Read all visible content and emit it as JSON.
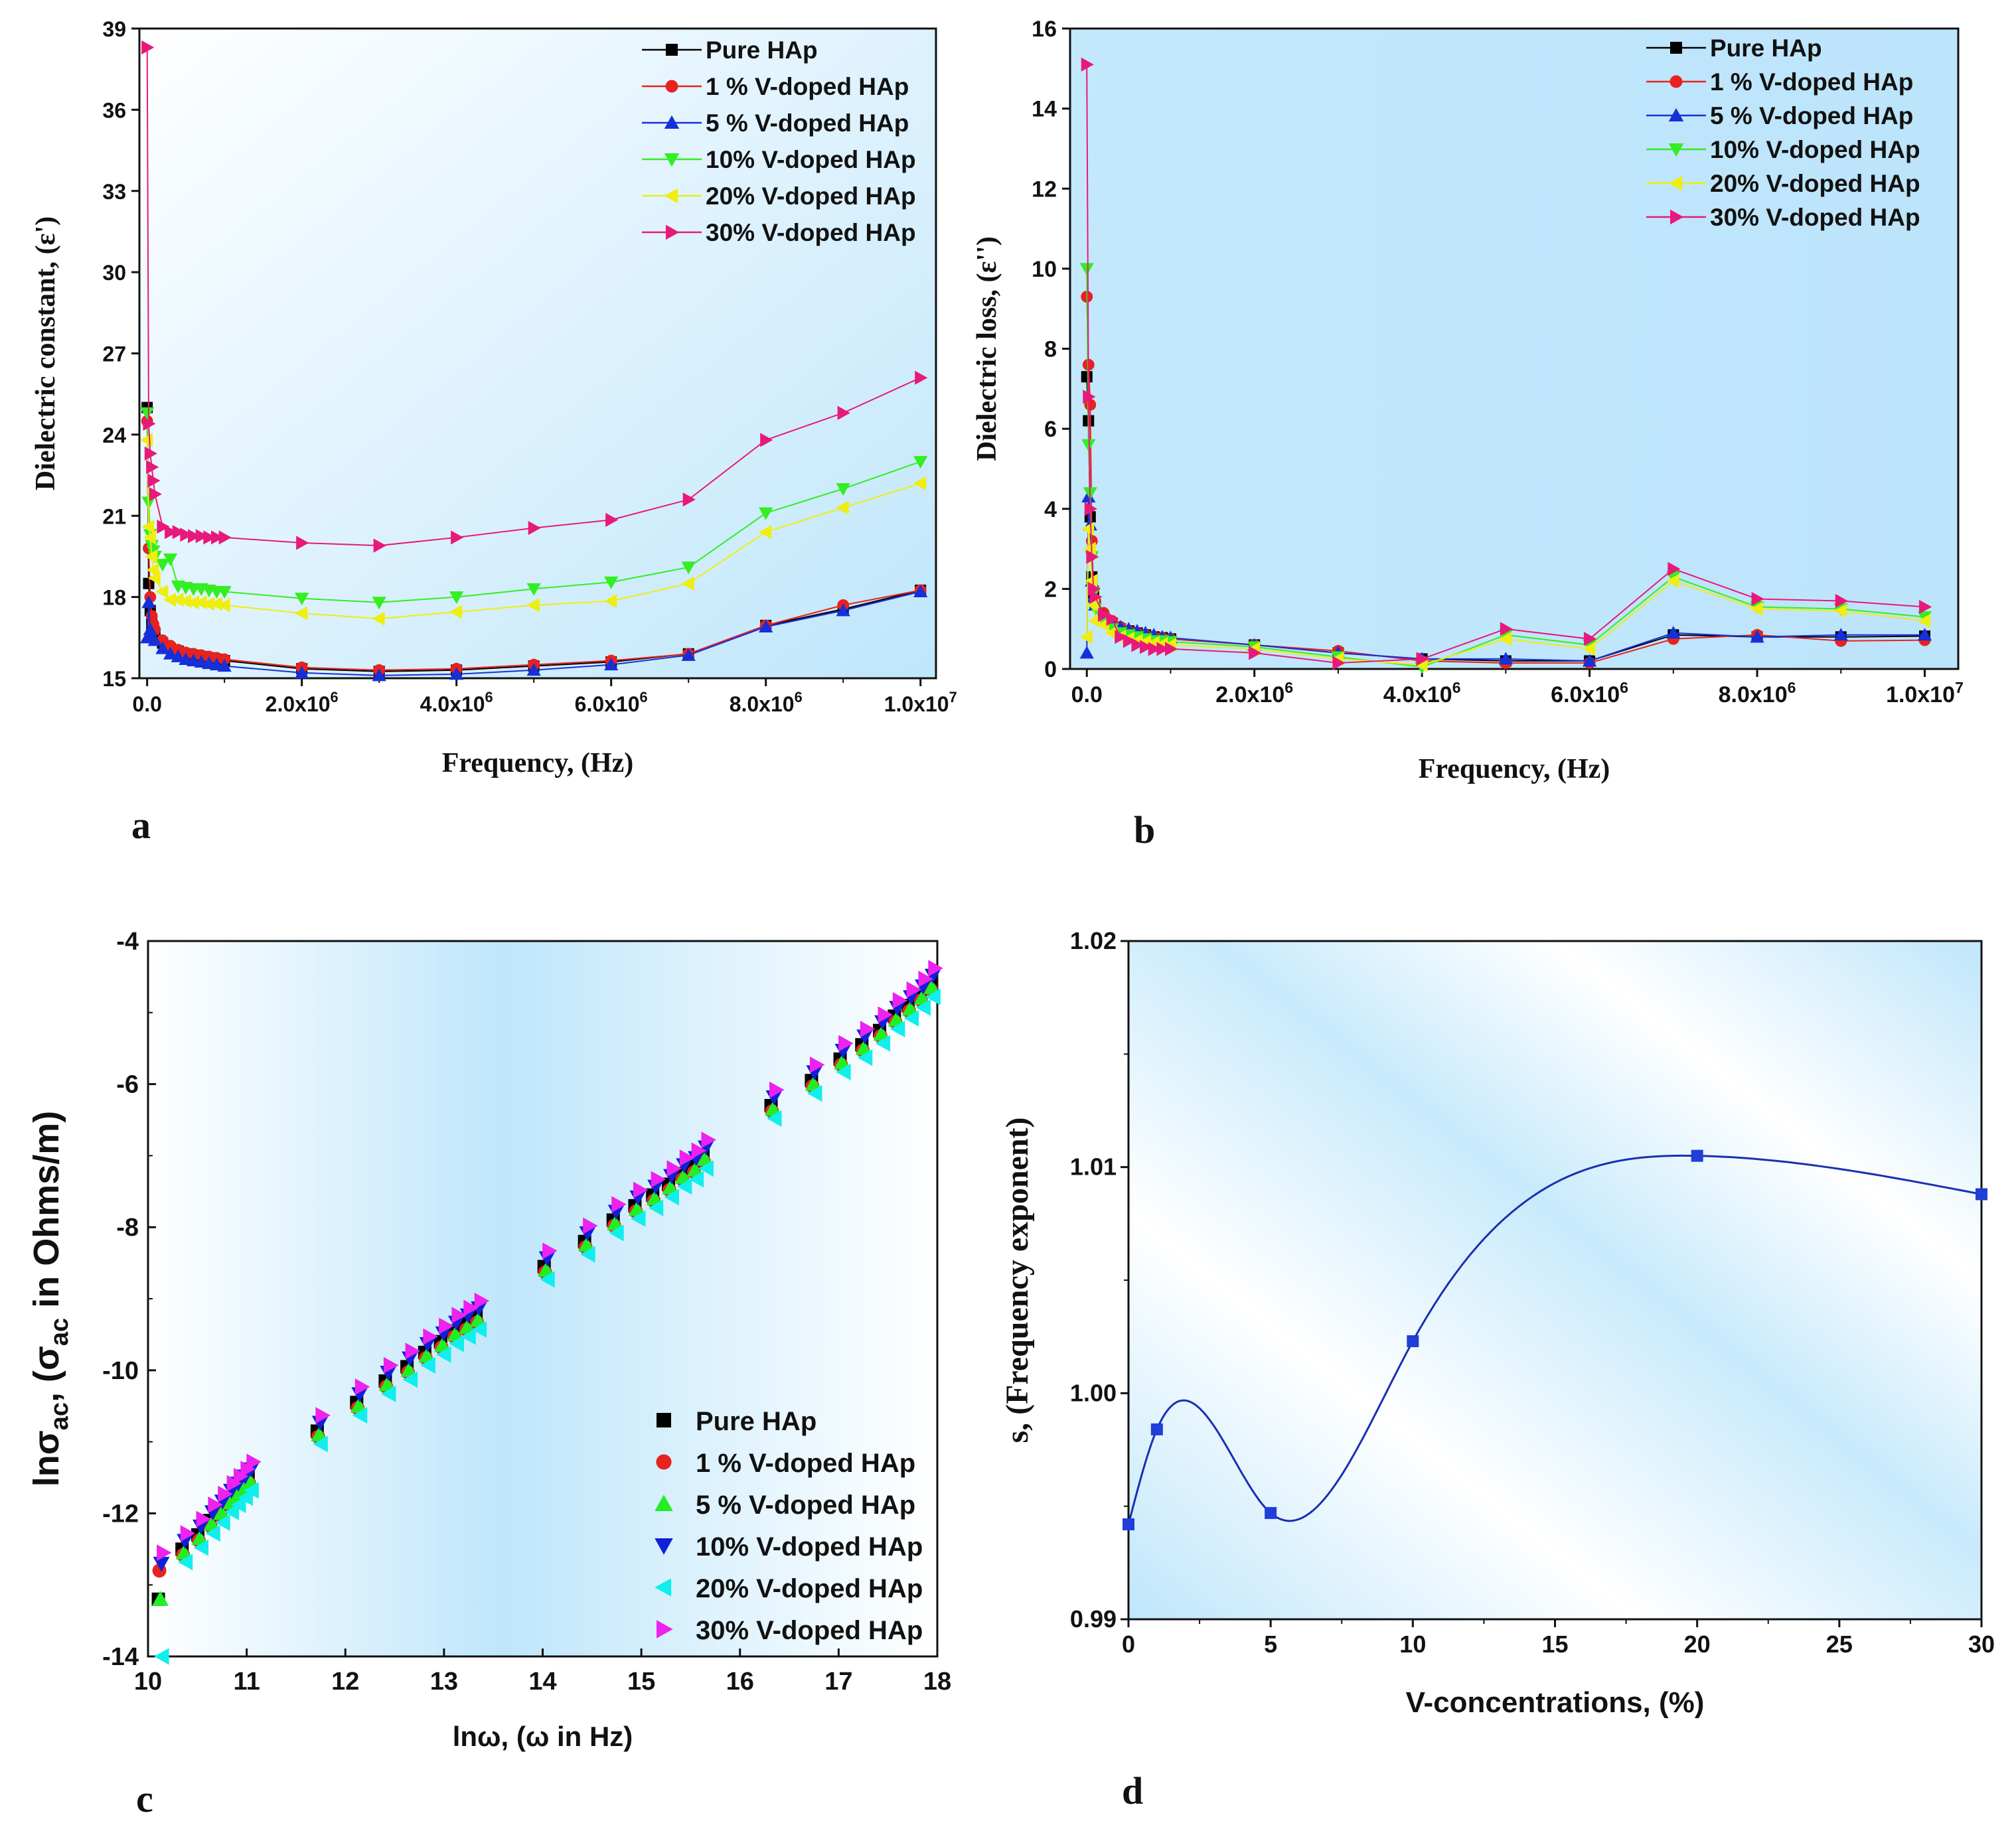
{
  "colors": {
    "pure": "#000000",
    "v1": "#e8221e",
    "v5": "#1530d8",
    "v10": "#33ee22",
    "v20": "#eeee10",
    "v30": "#e8197a",
    "c_v5": "#22ee22",
    "c_v10": "#1020d8",
    "c_v20": "#11eeee",
    "c_v30": "#ee22ee",
    "d_line": "#1a2fb0",
    "bg_light": "#bfe6fb"
  },
  "chart_data": [
    {
      "id": "a",
      "panel_label": "a",
      "type": "line",
      "xlabel": "Frequency, (Hz)",
      "ylabel": "Dielectric constant, (ε')",
      "xlim": [
        -100000,
        10200000
      ],
      "ylim": [
        15,
        39
      ],
      "xticks": [
        {
          "v": 0,
          "label": "0.0"
        },
        {
          "v": 2000000,
          "label": "2.0x10",
          "sup": "6"
        },
        {
          "v": 4000000,
          "label": "4.0x10",
          "sup": "6"
        },
        {
          "v": 6000000,
          "label": "6.0x10",
          "sup": "6"
        },
        {
          "v": 8000000,
          "label": "8.0x10",
          "sup": "6"
        },
        {
          "v": 10000000,
          "label": "1.0x10",
          "sup": "7"
        }
      ],
      "yticks": [
        "15",
        "18",
        "21",
        "24",
        "27",
        "30",
        "33",
        "36",
        "39"
      ],
      "legend": [
        "Pure HAp",
        "1  % V-doped HAp",
        "5  % V-doped HAp",
        "10% V-doped HAp",
        "20% V-doped HAp",
        "30% V-doped HAp"
      ],
      "x": [
        0,
        20000,
        40000,
        60000,
        80000,
        100000,
        200000,
        300000,
        400000,
        500000,
        600000,
        700000,
        800000,
        900000,
        1000000,
        2000000,
        3000000,
        4000000,
        5000000,
        6000000,
        7000000,
        8000000,
        9000000,
        10000000
      ],
      "series": [
        {
          "name": "Pure HAp",
          "marker": "square",
          "values": [
            25.0,
            18.5,
            17.5,
            17.0,
            16.8,
            16.6,
            16.3,
            16.1,
            16.0,
            15.9,
            15.85,
            15.8,
            15.75,
            15.7,
            15.65,
            15.35,
            15.25,
            15.3,
            15.45,
            15.6,
            15.9,
            16.95,
            17.55,
            18.25
          ]
        },
        {
          "name": "1  % V-doped HAp",
          "marker": "circle",
          "values": [
            24.5,
            19.8,
            18.0,
            17.3,
            17.0,
            16.8,
            16.4,
            16.2,
            16.05,
            15.95,
            15.9,
            15.85,
            15.8,
            15.75,
            15.7,
            15.4,
            15.3,
            15.35,
            15.5,
            15.65,
            15.9,
            16.95,
            17.7,
            18.25
          ]
        },
        {
          "name": "5  % V-doped HAp",
          "marker": "triangle-up",
          "values": [
            16.5,
            17.8,
            16.8,
            16.6,
            16.5,
            16.4,
            16.1,
            15.9,
            15.8,
            15.7,
            15.65,
            15.6,
            15.55,
            15.5,
            15.45,
            15.2,
            15.1,
            15.15,
            15.3,
            15.5,
            15.85,
            16.9,
            17.5,
            18.2
          ]
        },
        {
          "name": "10% V-doped HAp",
          "marker": "triangle-down",
          "values": [
            24.8,
            21.5,
            20.3,
            19.9,
            19.7,
            19.5,
            19.2,
            19.4,
            18.4,
            18.35,
            18.3,
            18.3,
            18.25,
            18.2,
            18.2,
            17.95,
            17.8,
            18.0,
            18.3,
            18.55,
            19.1,
            21.1,
            22.0,
            23.0
          ]
        },
        {
          "name": "20% V-doped HAp",
          "marker": "triangle-left",
          "values": [
            23.8,
            20.6,
            20.2,
            19.5,
            19.0,
            18.7,
            18.2,
            17.9,
            17.9,
            17.85,
            17.8,
            17.8,
            17.75,
            17.75,
            17.7,
            17.4,
            17.2,
            17.45,
            17.7,
            17.85,
            18.5,
            20.4,
            21.3,
            22.2
          ]
        },
        {
          "name": "30% V-doped HAp",
          "marker": "triangle-right",
          "values": [
            38.3,
            24.4,
            23.3,
            22.8,
            22.3,
            21.8,
            20.6,
            20.4,
            20.4,
            20.3,
            20.25,
            20.25,
            20.2,
            20.2,
            20.2,
            20.0,
            19.9,
            20.2,
            20.55,
            20.85,
            21.6,
            23.8,
            24.8,
            26.1
          ]
        }
      ]
    },
    {
      "id": "b",
      "panel_label": "b",
      "type": "line",
      "xlabel": "Frequency, (Hz)",
      "ylabel": "Dielectric loss, (ε'')",
      "xlim": [
        -200000,
        10400000
      ],
      "ylim": [
        0,
        16
      ],
      "xticks": [
        {
          "v": 0,
          "label": "0.0"
        },
        {
          "v": 2000000,
          "label": "2.0x10",
          "sup": "6"
        },
        {
          "v": 4000000,
          "label": "4.0x10",
          "sup": "6"
        },
        {
          "v": 6000000,
          "label": "6.0x10",
          "sup": "6"
        },
        {
          "v": 8000000,
          "label": "8.0x10",
          "sup": "6"
        },
        {
          "v": 10000000,
          "label": "1.0x10",
          "sup": "7"
        }
      ],
      "yticks": [
        "0",
        "2",
        "4",
        "6",
        "8",
        "10",
        "12",
        "14",
        "16"
      ],
      "legend": [
        "Pure HAp",
        "1  % V-doped HAp",
        "5  % V-doped HAp",
        "10% V-doped HAp",
        "20% V-doped HAp",
        "30% V-doped HAp"
      ],
      "x": [
        0,
        20000,
        40000,
        60000,
        80000,
        100000,
        200000,
        300000,
        400000,
        500000,
        600000,
        700000,
        800000,
        900000,
        1000000,
        2000000,
        3000000,
        4000000,
        5000000,
        6000000,
        7000000,
        8000000,
        9000000,
        10000000
      ],
      "series": [
        {
          "name": "Pure HAp",
          "marker": "square",
          "values": [
            7.3,
            6.2,
            3.8,
            2.3,
            1.9,
            1.6,
            1.3,
            1.15,
            1.0,
            0.95,
            0.9,
            0.85,
            0.8,
            0.78,
            0.75,
            0.6,
            0.4,
            0.25,
            0.2,
            0.2,
            0.85,
            0.8,
            0.8,
            0.82
          ]
        },
        {
          "name": "1  % V-doped HAp",
          "marker": "circle",
          "values": [
            9.3,
            7.6,
            6.6,
            3.2,
            2.0,
            1.7,
            1.4,
            1.2,
            1.05,
            0.95,
            0.9,
            0.85,
            0.8,
            0.78,
            0.75,
            0.6,
            0.45,
            0.2,
            0.15,
            0.15,
            0.75,
            0.85,
            0.7,
            0.72
          ]
        },
        {
          "name": "5  % V-doped HAp",
          "marker": "triangle-up",
          "values": [
            0.4,
            4.3,
            3.6,
            2.2,
            1.8,
            1.6,
            1.3,
            1.15,
            1.05,
            1.0,
            0.95,
            0.9,
            0.85,
            0.8,
            0.78,
            0.6,
            0.4,
            0.25,
            0.25,
            0.2,
            0.9,
            0.8,
            0.85,
            0.85
          ]
        },
        {
          "name": "10% V-doped HAp",
          "marker": "triangle-down",
          "values": [
            10.0,
            5.6,
            4.4,
            2.8,
            1.9,
            1.5,
            1.25,
            1.0,
            0.9,
            0.85,
            0.8,
            0.75,
            0.7,
            0.7,
            0.68,
            0.55,
            0.3,
            0.05,
            0.85,
            0.6,
            2.3,
            1.55,
            1.5,
            1.3
          ]
        },
        {
          "name": "20% V-doped HAp",
          "marker": "triangle-left",
          "values": [
            0.8,
            3.5,
            3.0,
            2.2,
            1.6,
            1.2,
            1.1,
            0.9,
            0.8,
            0.75,
            0.7,
            0.68,
            0.65,
            0.62,
            0.6,
            0.5,
            0.25,
            0.1,
            0.75,
            0.5,
            2.2,
            1.5,
            1.45,
            1.2
          ]
        },
        {
          "name": "30% V-doped HAp",
          "marker": "triangle-right",
          "values": [
            15.1,
            6.8,
            4.0,
            2.8,
            2.0,
            1.8,
            1.35,
            1.25,
            0.8,
            0.7,
            0.6,
            0.55,
            0.5,
            0.5,
            0.5,
            0.4,
            0.15,
            0.25,
            1.0,
            0.75,
            2.5,
            1.75,
            1.7,
            1.55
          ]
        }
      ]
    },
    {
      "id": "c",
      "panel_label": "c",
      "type": "scatter",
      "xlabel": "lnω, (ω in Hz)",
      "ylabel_main": "lnσ",
      "ylabel_sub": "ac",
      "ylabel_tail": ", (σ",
      "ylabel_sub2": "ac",
      "ylabel_end": " in Ohms/m)",
      "xlim": [
        10,
        18
      ],
      "ylim": [
        -14,
        -4
      ],
      "xticks": [
        "10",
        "11",
        "12",
        "13",
        "14",
        "15",
        "16",
        "17",
        "18"
      ],
      "yticks": [
        "-14",
        "-12",
        "-10",
        "-8",
        "-6",
        "-4"
      ],
      "legend": [
        "Pure HAp",
        "1  % V-doped HAp",
        "5  % V-doped HAp",
        "10% V-doped HAp",
        "20% V-doped HAp",
        "30% V-doped HAp"
      ],
      "x": [
        10.13,
        10.37,
        10.53,
        10.65,
        10.75,
        10.84,
        10.91,
        10.98,
        11.04,
        11.74,
        12.14,
        12.43,
        12.65,
        12.83,
        12.99,
        13.12,
        13.24,
        13.35,
        14.04,
        14.45,
        14.74,
        14.96,
        15.14,
        15.3,
        15.43,
        15.55,
        15.65,
        16.34,
        16.75,
        17.04,
        17.26,
        17.44,
        17.59,
        17.73,
        17.85,
        17.95
      ],
      "series": [
        {
          "name": "Pure HAp",
          "marker": "square",
          "offset": 0.0
        },
        {
          "name": "1  % V-doped HAp",
          "marker": "circle",
          "offset": -0.08
        },
        {
          "name": "5  % V-doped HAp",
          "marker": "triangle-up",
          "offset": -0.05
        },
        {
          "name": "10% V-doped HAp",
          "marker": "triangle-down",
          "offset": 0.12
        },
        {
          "name": "20% V-doped HAp",
          "marker": "triangle-left",
          "offset": -0.18
        },
        {
          "name": "30% V-doped HAp",
          "marker": "triangle-right",
          "offset": 0.22
        }
      ],
      "base_values": [
        -13.2,
        -12.5,
        -12.3,
        -12.1,
        -11.95,
        -11.8,
        -11.7,
        -11.6,
        -11.5,
        -10.85,
        -10.45,
        -10.15,
        -9.95,
        -9.75,
        -9.6,
        -9.45,
        -9.35,
        -9.25,
        -8.55,
        -8.2,
        -7.9,
        -7.7,
        -7.55,
        -7.4,
        -7.25,
        -7.15,
        -7.0,
        -6.3,
        -5.95,
        -5.65,
        -5.45,
        -5.25,
        -5.05,
        -4.9,
        -4.75,
        -4.6
      ],
      "first_points": {
        "Pure HAp": -13.2,
        "1  % V-doped HAp": -12.8,
        "5  % V-doped HAp": -13.2,
        "10% V-doped HAp": -12.7,
        "20% V-doped HAp": -14.0,
        "30% V-doped HAp": -12.55
      }
    },
    {
      "id": "d",
      "panel_label": "d",
      "type": "line",
      "xlabel": "V-concentrations, (%)",
      "ylabel": "s, (Frequency  exponent)",
      "xlim": [
        0,
        30
      ],
      "ylim": [
        0.99,
        1.02
      ],
      "xticks": [
        "0",
        "5",
        "10",
        "15",
        "20",
        "25",
        "30"
      ],
      "yticks": [
        "0.99",
        "1.00",
        "1.01",
        "1.02"
      ],
      "x": [
        0,
        1,
        5,
        10,
        20,
        30
      ],
      "values": [
        0.9942,
        0.9984,
        0.9947,
        1.0023,
        1.0105,
        1.0088
      ]
    }
  ]
}
